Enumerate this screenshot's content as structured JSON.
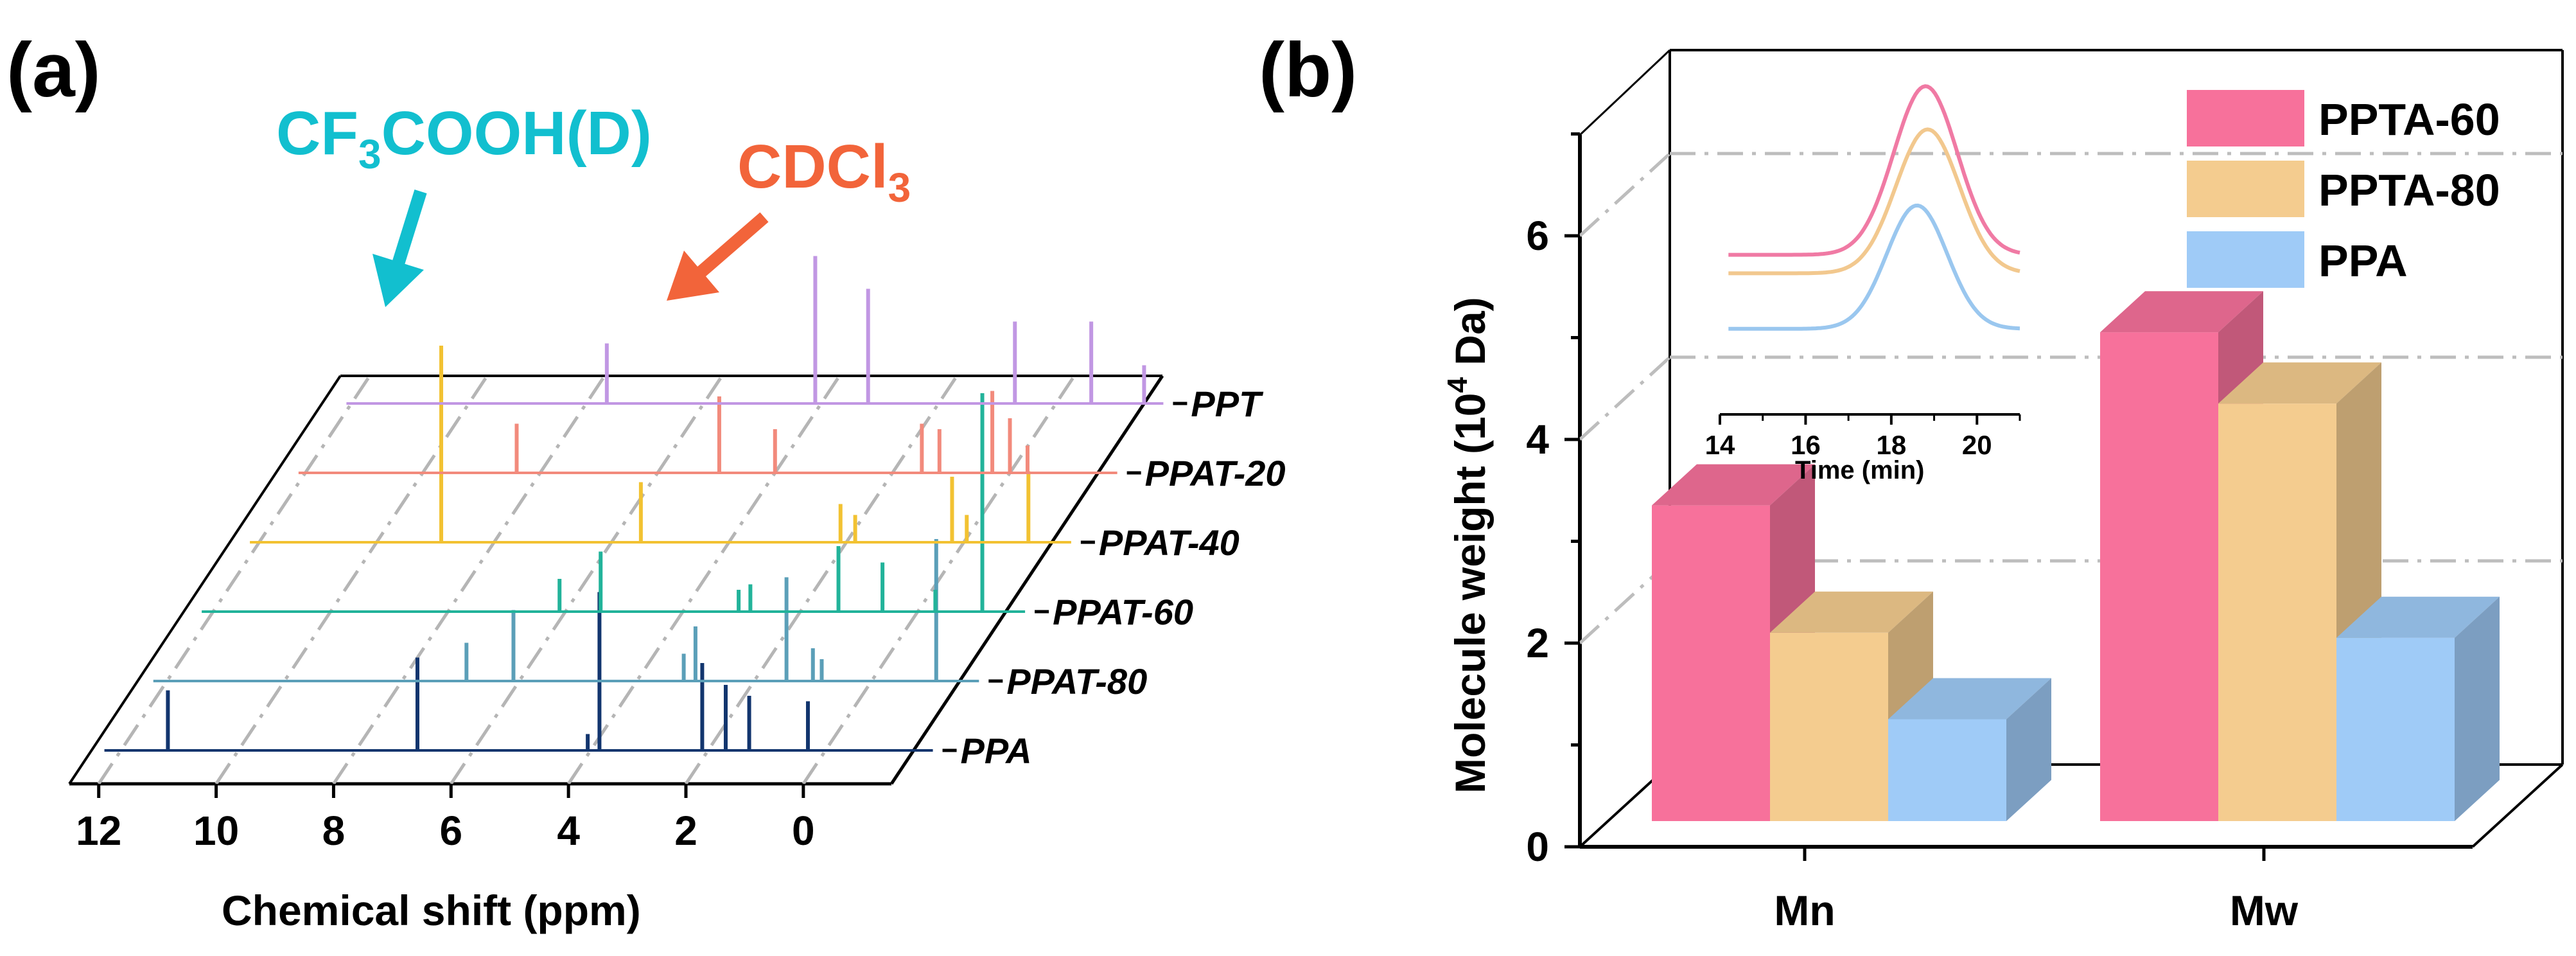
{
  "panel_a": {
    "label": "(a)",
    "chart_data": {
      "type": "line",
      "title": "",
      "xlabel": "Chemical shift (ppm)",
      "ylabel": "",
      "xlim": [
        12.5,
        -0.5
      ],
      "x_ticks": [
        "12",
        "10",
        "8",
        "6",
        "4",
        "2",
        "0"
      ],
      "series": [
        {
          "name": "PPA",
          "color": "#12356e",
          "peaks": [
            [
              11.2,
              0.55
            ],
            [
              6.95,
              0.85
            ],
            [
              4.05,
              0.15
            ],
            [
              3.85,
              1.45
            ],
            [
              2.1,
              0.8
            ],
            [
              1.7,
              0.6
            ],
            [
              1.3,
              0.5
            ],
            [
              0.3,
              0.45
            ]
          ]
        },
        {
          "name": "PPAT-80",
          "color": "#5b9fb8",
          "peaks": [
            [
              6.9,
              0.35
            ],
            [
              6.1,
              0.65
            ],
            [
              3.0,
              0.5
            ],
            [
              3.2,
              0.25
            ],
            [
              1.45,
              0.95
            ],
            [
              1.0,
              0.3
            ],
            [
              0.85,
              0.2
            ],
            [
              -1.1,
              1.3
            ]
          ]
        },
        {
          "name": "PPAT-60",
          "color": "#22b39a",
          "peaks": [
            [
              6.1,
              0.3
            ],
            [
              5.4,
              0.55
            ],
            [
              3.05,
              0.2
            ],
            [
              2.85,
              0.25
            ],
            [
              1.35,
              0.6
            ],
            [
              0.6,
              0.45
            ],
            [
              -0.3,
              0.2
            ],
            [
              -1.1,
              2.0
            ]
          ]
        },
        {
          "name": "PPAT-40",
          "color": "#f2c232",
          "peaks": [
            [
              8.9,
              1.8
            ],
            [
              5.5,
              0.55
            ],
            [
              2.1,
              0.35
            ],
            [
              1.85,
              0.25
            ],
            [
              0.2,
              0.6
            ],
            [
              -0.05,
              0.25
            ],
            [
              -1.1,
              0.65
            ]
          ]
        },
        {
          "name": "PPAT-20",
          "color": "#f28a7c",
          "peaks": [
            [
              8.4,
              0.45
            ],
            [
              4.95,
              0.7
            ],
            [
              4.0,
              0.4
            ],
            [
              1.5,
              0.45
            ],
            [
              1.2,
              0.4
            ],
            [
              0.3,
              0.75
            ],
            [
              0.0,
              0.5
            ],
            [
              -0.3,
              0.25
            ]
          ]
        },
        {
          "name": "PPT",
          "color": "#c197e3",
          "peaks": [
            [
              7.65,
              0.55
            ],
            [
              4.1,
              1.35
            ],
            [
              3.2,
              1.05
            ],
            [
              0.7,
              0.75
            ],
            [
              -0.6,
              0.75
            ],
            [
              -1.5,
              0.35
            ]
          ]
        }
      ],
      "annotations": [
        {
          "text": "CF3COOH(D)",
          "color": "#12bfcf"
        },
        {
          "text": "CDCl3",
          "color": "#f2643a"
        }
      ]
    },
    "annotations": {
      "cf3cooh_prefix": "CF",
      "cf3cooh_sub": "3",
      "cf3cooh_suffix": "COOH(D)",
      "cdcl3_prefix": "CDCl",
      "cdcl3_sub": "3"
    }
  },
  "panel_b": {
    "label": "(b)",
    "chart_data": {
      "type": "bar",
      "title": "",
      "xlabel": "",
      "ylabel": "Molecule weight (10^4 Da)",
      "ylim": [
        0,
        7
      ],
      "y_ticks": [
        "0",
        "2",
        "4",
        "6"
      ],
      "categories": [
        "Mn",
        "Mw"
      ],
      "series": [
        {
          "name": "PPTA-60",
          "color": "#f7719b",
          "values": [
            3.1,
            4.8
          ]
        },
        {
          "name": "PPTA-80",
          "color": "#f4cc8f",
          "values": [
            1.85,
            4.1
          ]
        },
        {
          "name": "PPA",
          "color": "#9fcbf7",
          "values": [
            1.0,
            1.8
          ]
        }
      ],
      "legend_position": "top-right",
      "inset": {
        "type": "line",
        "xlabel": "Time (min)",
        "x_ticks": [
          "14",
          "16",
          "18",
          "20"
        ],
        "xlim": [
          14,
          21
        ],
        "series": [
          {
            "name": "PPTA-60",
            "color": "#f07aa4",
            "center": 18.8,
            "width": 1.05,
            "baseline": 0.62,
            "height": 0.82
          },
          {
            "name": "PPTA-80",
            "color": "#f2c88e",
            "center": 18.85,
            "width": 1.05,
            "baseline": 0.53,
            "height": 0.7
          },
          {
            "name": "PPA",
            "color": "#9ac7ef",
            "center": 18.6,
            "width": 1.0,
            "baseline": 0.26,
            "height": 0.6
          }
        ]
      }
    },
    "ylabel_prefix": "Molecule weight (10",
    "ylabel_sup": "4",
    "ylabel_suffix": " Da)"
  }
}
